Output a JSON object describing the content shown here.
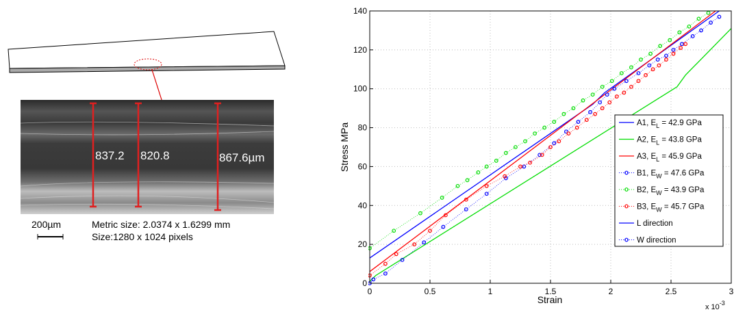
{
  "figure": {
    "measurements": [
      "837.2",
      "820.8",
      "867.6µm"
    ],
    "scale_bar": "200µm",
    "metric_size": "Metric size: 2.0374 x 1.6299 mm",
    "pixel_size": "Size:1280 x 1024 pixels"
  },
  "chart_data": {
    "type": "line",
    "xlabel": "Strain",
    "ylabel": "Stress MPa",
    "x_multiplier": "x 10",
    "x_multiplier_exp": "-3",
    "xlim": [
      0,
      3
    ],
    "ylim": [
      0,
      140
    ],
    "xticks": [
      0,
      0.5,
      1,
      1.5,
      2,
      2.5,
      3
    ],
    "yticks": [
      0,
      20,
      40,
      60,
      80,
      100,
      120,
      140
    ],
    "grid": true,
    "legend": "right",
    "series": [
      {
        "name": "A1, E",
        "name_sub": "L",
        "name_suffix": " = 42.9 GPa",
        "color": "#0000ff",
        "style": "line",
        "x": [
          0,
          1.85,
          1.95,
          2.9
        ],
        "values": [
          13,
          92,
          98,
          140
        ]
      },
      {
        "name": "A2, E",
        "name_sub": "L",
        "name_suffix": " = 43.8 GPa",
        "color": "#00dd00",
        "style": "line",
        "x": [
          0,
          0.05,
          2.55,
          2.62,
          3
        ],
        "values": [
          1,
          4,
          101,
          107,
          131
        ]
      },
      {
        "name": "A3, E",
        "name_sub": "L",
        "name_suffix": " = 45.9 GPa",
        "color": "#ff0000",
        "style": "line",
        "x": [
          0,
          2.87
        ],
        "values": [
          6,
          140
        ]
      },
      {
        "name": "B1, E",
        "name_sub": "W",
        "name_suffix": " = 47.6 GPa",
        "color": "#0000ff",
        "style": "marker",
        "x": [
          0,
          0.03,
          0.13,
          0.27,
          0.45,
          0.61,
          0.8,
          0.97,
          1.13,
          1.28,
          1.41,
          1.53,
          1.63,
          1.73,
          1.83,
          1.91,
          1.97,
          2.03,
          2.13,
          2.23,
          2.32,
          2.39,
          2.46,
          2.52,
          2.59,
          2.68,
          2.75,
          2.83,
          2.9
        ],
        "values": [
          0,
          2,
          5,
          12,
          21,
          29,
          38,
          46,
          54,
          60,
          66,
          72,
          78,
          83,
          88,
          93,
          97,
          100,
          104,
          108,
          112,
          115,
          117,
          120,
          123,
          127,
          130,
          134,
          137
        ]
      },
      {
        "name": "B2, E",
        "name_sub": "W",
        "name_suffix": " = 43.9 GPa",
        "color": "#00dd00",
        "style": "marker",
        "x": [
          0,
          0.2,
          0.42,
          0.6,
          0.73,
          0.81,
          0.9,
          0.97,
          1.05,
          1.13,
          1.21,
          1.29,
          1.37,
          1.45,
          1.53,
          1.61,
          1.69,
          1.77,
          1.85,
          1.93,
          2.01,
          2.09,
          2.17,
          2.25,
          2.33,
          2.41,
          2.49,
          2.57,
          2.65,
          2.73,
          2.81
        ],
        "values": [
          18,
          27,
          36,
          44,
          50,
          53,
          57,
          60,
          63,
          67,
          70,
          73,
          77,
          80,
          83,
          87,
          90,
          94,
          97,
          101,
          104,
          108,
          111,
          115,
          118,
          122,
          125,
          129,
          132,
          136,
          139
        ]
      },
      {
        "name": "B3, E",
        "name_sub": "W",
        "name_suffix": " = 45.7 GPa",
        "color": "#ff0000",
        "style": "marker",
        "x": [
          0,
          0.13,
          0.22,
          0.37,
          0.5,
          0.63,
          0.8,
          0.97,
          1.12,
          1.25,
          1.33,
          1.43,
          1.5,
          1.57,
          1.65,
          1.72,
          1.8,
          1.87,
          1.93,
          1.99,
          2.05,
          2.11,
          2.17,
          2.23,
          2.29,
          2.35,
          2.4,
          2.46,
          2.52,
          2.58,
          2.62
        ],
        "values": [
          4,
          10,
          15,
          20,
          27,
          35,
          43,
          50,
          55,
          60,
          62,
          66,
          70,
          73,
          77,
          80,
          84,
          87,
          90,
          93,
          96,
          98,
          101,
          104,
          107,
          110,
          112,
          115,
          118,
          121,
          123
        ]
      }
    ],
    "legend_extra": [
      {
        "name": "L direction",
        "color": "#0000ff",
        "style": "line"
      },
      {
        "name": "W direction",
        "color": "#0000ff",
        "style": "marker"
      }
    ]
  }
}
